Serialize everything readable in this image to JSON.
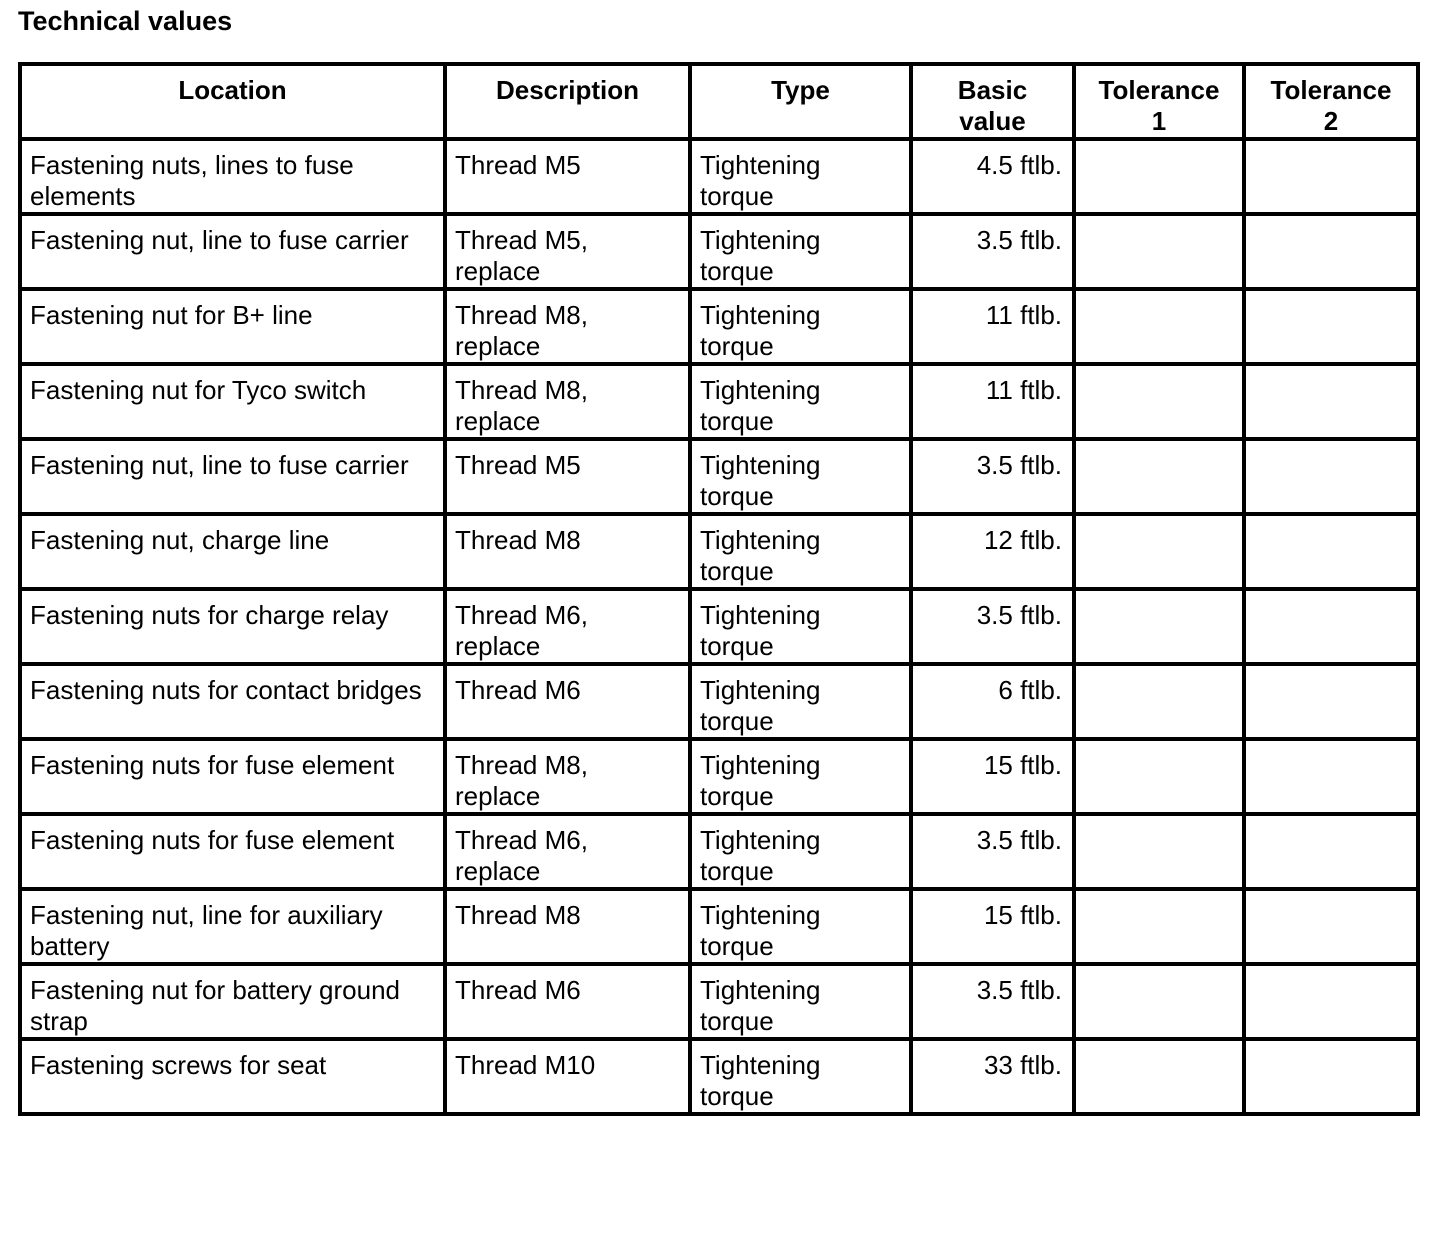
{
  "header": {
    "title": "Technical values"
  },
  "table": {
    "columns": [
      "Location",
      "Description",
      "Type",
      "Basic value",
      "Tolerance 1",
      "Tolerance 2"
    ],
    "rows": [
      [
        "Fastening nuts, lines to fuse elements",
        "Thread M5",
        "Tightening torque",
        "4.5 ftlb."
      ],
      [
        "Fastening nut, line to fuse carrier",
        "Thread M5, replace",
        "Tightening torque",
        "3.5 ftlb."
      ],
      [
        "Fastening nut for B+ line",
        "Thread M8, replace",
        "Tightening torque",
        "11 ftlb."
      ],
      [
        "Fastening nut for Tyco switch",
        "Thread M8, replace",
        "Tightening torque",
        "11 ftlb."
      ],
      [
        "Fastening nut, line to fuse carrier",
        "Thread M5",
        "Tightening torque",
        "3.5 ftlb."
      ],
      [
        "Fastening nut, charge line",
        "Thread M8",
        "Tightening torque",
        "12 ftlb."
      ],
      [
        "Fastening nuts for charge relay",
        "Thread M6, replace",
        "Tightening torque",
        "3.5 ftlb."
      ],
      [
        "Fastening nuts for contact bridges",
        "Thread M6",
        "Tightening torque",
        "6 ftlb."
      ],
      [
        "Fastening nuts for fuse element",
        "Thread M8, replace",
        "Tightening torque",
        "15 ftlb."
      ],
      [
        "Fastening nuts for fuse element",
        "Thread M6, replace",
        "Tightening torque",
        "3.5 ftlb."
      ],
      [
        "Fastening nut, line for auxiliary battery",
        "Thread M8",
        "Tightening torque",
        "15 ftlb."
      ],
      [
        "Fastening nut for battery ground strap",
        "Thread M6",
        "Tightening torque",
        "3.5 ftlb."
      ],
      [
        "Fastening screws for seat",
        "Thread M10",
        "Tightening torque",
        "33 ftlb."
      ]
    ]
  }
}
